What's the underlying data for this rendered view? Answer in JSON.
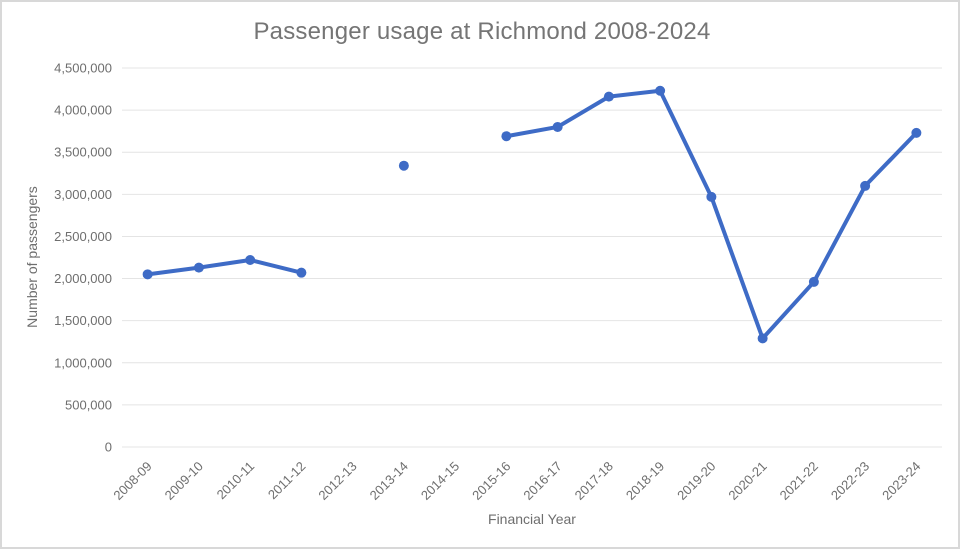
{
  "window": {
    "background_color": "#ffffff",
    "border_color": "#d8d8d8"
  },
  "chart_data": {
    "type": "line",
    "title": "Passenger usage at Richmond 2008-2024",
    "xlabel": "Financial Year",
    "ylabel": "Number of passengers",
    "categories": [
      "2008-09",
      "2009-10",
      "2010-11",
      "2011-12",
      "2012-13",
      "2013-14",
      "2014-15",
      "2015-16",
      "2016-17",
      "2017-18",
      "2018-19",
      "2019-20",
      "2020-21",
      "2021-22",
      "2022-23",
      "2023-24"
    ],
    "values": [
      2050000,
      2130000,
      2220000,
      2070000,
      null,
      3340000,
      null,
      3690000,
      3800000,
      4160000,
      4230000,
      2970000,
      1290000,
      1960000,
      3100000,
      3730000
    ],
    "ylim": [
      0,
      4500000
    ],
    "ytick_step": 500000,
    "ytick_labels": [
      "0",
      "500,000",
      "1,000,000",
      "1,500,000",
      "2,000,000",
      "2,500,000",
      "3,000,000",
      "3,500,000",
      "4,000,000",
      "4,500,000"
    ],
    "grid": true,
    "legend": "none",
    "line_color": "#3e6bc6",
    "marker": "circle",
    "gridline_color": "#e4e4e4",
    "title_color": "#757575",
    "tick_color": "#6e6e6e"
  }
}
